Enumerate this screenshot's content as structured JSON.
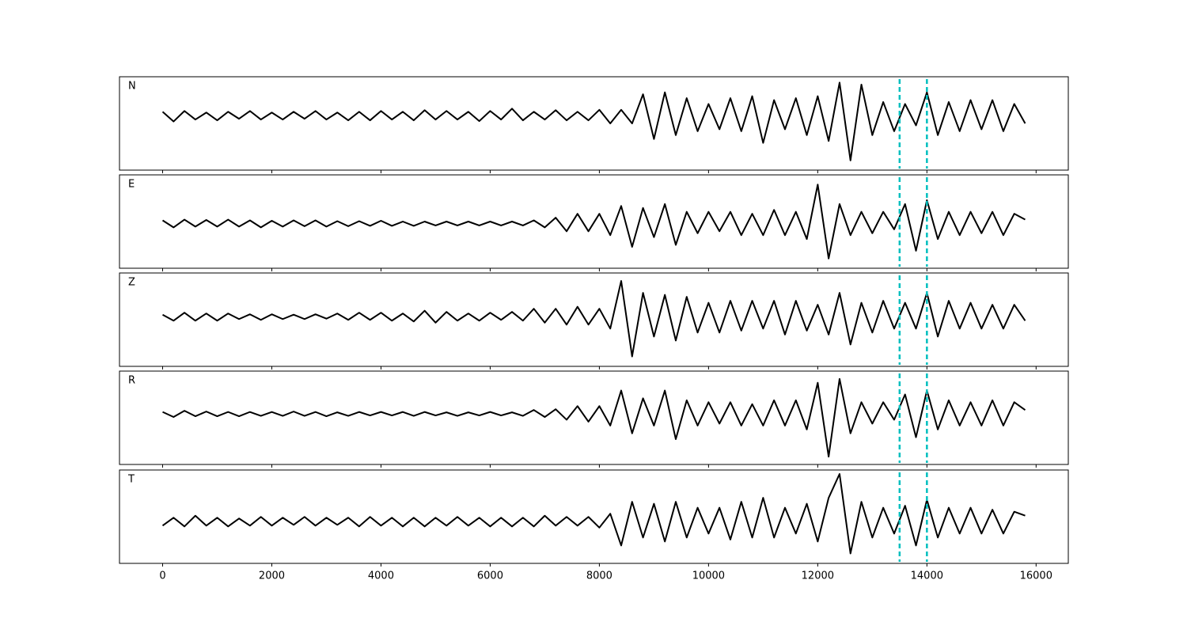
{
  "chart_data": {
    "type": "line",
    "x": [
      0,
      200,
      400,
      600,
      800,
      1000,
      1200,
      1400,
      1600,
      1800,
      2000,
      2200,
      2400,
      2600,
      2800,
      3000,
      3200,
      3400,
      3600,
      3800,
      4000,
      4200,
      4400,
      4600,
      4800,
      5000,
      5200,
      5400,
      5600,
      5800,
      6000,
      6200,
      6400,
      6600,
      6800,
      7000,
      7200,
      7400,
      7600,
      7800,
      8000,
      8200,
      8400,
      8600,
      8800,
      9000,
      9200,
      9400,
      9600,
      9800,
      10000,
      10200,
      10400,
      10600,
      10800,
      11000,
      11200,
      11400,
      11600,
      11800,
      12000,
      12200,
      12400,
      12600,
      12800,
      13000,
      13200,
      13400,
      13600,
      13800,
      14000,
      14200,
      14400,
      14600,
      14800,
      15000,
      15200,
      15400,
      15600,
      15800
    ],
    "xlim": [
      -790,
      16590
    ],
    "xticks": [
      0,
      2000,
      4000,
      6000,
      8000,
      10000,
      12000,
      14000,
      16000
    ],
    "vlines": [
      13500,
      14000
    ],
    "vline_color": "#00bfbf",
    "series": [
      {
        "name": "N",
        "color": "#000000",
        "ylim": [
          -1.4,
          1.0
        ],
        "values": [
          0.1,
          -0.15,
          0.12,
          -0.1,
          0.08,
          -0.12,
          0.1,
          -0.08,
          0.12,
          -0.1,
          0.08,
          -0.1,
          0.1,
          -0.08,
          0.12,
          -0.1,
          0.08,
          -0.12,
          0.1,
          -0.12,
          0.12,
          -0.1,
          0.1,
          -0.12,
          0.14,
          -0.1,
          0.12,
          -0.1,
          0.1,
          -0.14,
          0.12,
          -0.1,
          0.18,
          -0.12,
          0.1,
          -0.1,
          0.14,
          -0.12,
          0.1,
          -0.12,
          0.15,
          -0.2,
          0.15,
          -0.2,
          0.55,
          -0.6,
          0.6,
          -0.5,
          0.45,
          -0.4,
          0.3,
          -0.35,
          0.45,
          -0.4,
          0.5,
          -0.7,
          0.4,
          -0.35,
          0.45,
          -0.5,
          0.5,
          -0.65,
          0.85,
          -1.15,
          0.8,
          -0.5,
          0.35,
          -0.4,
          0.3,
          -0.25,
          0.6,
          -0.5,
          0.35,
          -0.4,
          0.4,
          -0.35,
          0.4,
          -0.4,
          0.3,
          -0.2
        ]
      },
      {
        "name": "E",
        "color": "#000000",
        "ylim": [
          -1.15,
          1.25
        ],
        "values": [
          0.08,
          -0.1,
          0.1,
          -0.08,
          0.09,
          -0.08,
          0.1,
          -0.08,
          0.08,
          -0.1,
          0.07,
          -0.08,
          0.08,
          -0.07,
          0.08,
          -0.08,
          0.06,
          -0.07,
          0.06,
          -0.06,
          0.07,
          -0.06,
          0.05,
          -0.06,
          0.05,
          -0.05,
          0.05,
          -0.05,
          0.05,
          -0.05,
          0.05,
          -0.05,
          0.05,
          -0.05,
          0.08,
          -0.1,
          0.15,
          -0.2,
          0.25,
          -0.2,
          0.25,
          -0.3,
          0.45,
          -0.6,
          0.4,
          -0.35,
          0.5,
          -0.55,
          0.3,
          -0.25,
          0.3,
          -0.2,
          0.3,
          -0.3,
          0.25,
          -0.3,
          0.35,
          -0.3,
          0.3,
          -0.4,
          1.0,
          -0.9,
          0.5,
          -0.3,
          0.3,
          -0.25,
          0.3,
          -0.15,
          0.5,
          -0.7,
          0.6,
          -0.4,
          0.3,
          -0.3,
          0.3,
          -0.25,
          0.3,
          -0.3,
          0.25,
          0.1
        ]
      },
      {
        "name": "Z",
        "color": "#000000",
        "ylim": [
          -1.25,
          1.1
        ],
        "values": [
          0.05,
          -0.1,
          0.1,
          -0.1,
          0.08,
          -0.1,
          0.08,
          -0.06,
          0.06,
          -0.08,
          0.06,
          -0.06,
          0.05,
          -0.06,
          0.06,
          -0.05,
          0.08,
          -0.08,
          0.1,
          -0.08,
          0.1,
          -0.1,
          0.08,
          -0.12,
          0.15,
          -0.15,
          0.12,
          -0.1,
          0.08,
          -0.1,
          0.1,
          -0.08,
          0.12,
          -0.1,
          0.2,
          -0.15,
          0.2,
          -0.2,
          0.25,
          -0.2,
          0.2,
          -0.3,
          0.9,
          -1.0,
          0.6,
          -0.5,
          0.55,
          -0.6,
          0.5,
          -0.4,
          0.35,
          -0.4,
          0.4,
          -0.35,
          0.4,
          -0.3,
          0.4,
          -0.45,
          0.4,
          -0.35,
          0.3,
          -0.45,
          0.6,
          -0.7,
          0.35,
          -0.4,
          0.4,
          -0.3,
          0.35,
          -0.3,
          0.6,
          -0.5,
          0.4,
          -0.3,
          0.35,
          -0.3,
          0.3,
          -0.3,
          0.3,
          -0.1
        ]
      },
      {
        "name": "R",
        "color": "#000000",
        "ylim": [
          -1.3,
          1.1
        ],
        "values": [
          0.05,
          -0.08,
          0.08,
          -0.06,
          0.06,
          -0.06,
          0.05,
          -0.06,
          0.05,
          -0.05,
          0.05,
          -0.05,
          0.06,
          -0.05,
          0.05,
          -0.06,
          0.04,
          -0.05,
          0.05,
          -0.04,
          0.05,
          -0.04,
          0.05,
          -0.05,
          0.05,
          -0.04,
          0.04,
          -0.05,
          0.04,
          -0.04,
          0.05,
          -0.04,
          0.04,
          -0.05,
          0.1,
          -0.08,
          0.12,
          -0.15,
          0.2,
          -0.2,
          0.2,
          -0.3,
          0.6,
          -0.5,
          0.4,
          -0.3,
          0.6,
          -0.65,
          0.35,
          -0.3,
          0.3,
          -0.25,
          0.3,
          -0.3,
          0.25,
          -0.3,
          0.35,
          -0.3,
          0.35,
          -0.4,
          0.8,
          -1.1,
          0.9,
          -0.5,
          0.3,
          -0.25,
          0.3,
          -0.15,
          0.5,
          -0.6,
          0.6,
          -0.4,
          0.35,
          -0.3,
          0.3,
          -0.3,
          0.35,
          -0.3,
          0.3,
          0.1
        ]
      },
      {
        "name": "T",
        "color": "#000000",
        "ylim": [
          -1.05,
          1.3
        ],
        "values": [
          -0.1,
          0.1,
          -0.12,
          0.15,
          -0.1,
          0.1,
          -0.12,
          0.08,
          -0.1,
          0.12,
          -0.1,
          0.1,
          -0.08,
          0.12,
          -0.1,
          0.1,
          -0.08,
          0.1,
          -0.12,
          0.12,
          -0.1,
          0.1,
          -0.12,
          0.1,
          -0.12,
          0.1,
          -0.1,
          0.12,
          -0.1,
          0.1,
          -0.12,
          0.1,
          -0.12,
          0.1,
          -0.12,
          0.15,
          -0.1,
          0.12,
          -0.1,
          0.12,
          -0.15,
          0.2,
          -0.6,
          0.5,
          -0.4,
          0.45,
          -0.5,
          0.5,
          -0.4,
          0.35,
          -0.3,
          0.35,
          -0.45,
          0.5,
          -0.4,
          0.6,
          -0.4,
          0.35,
          -0.3,
          0.45,
          -0.5,
          0.6,
          1.2,
          -0.8,
          0.5,
          -0.4,
          0.35,
          -0.3,
          0.4,
          -0.6,
          0.55,
          -0.4,
          0.35,
          -0.3,
          0.35,
          -0.3,
          0.3,
          -0.3,
          0.25,
          0.15
        ]
      }
    ]
  }
}
